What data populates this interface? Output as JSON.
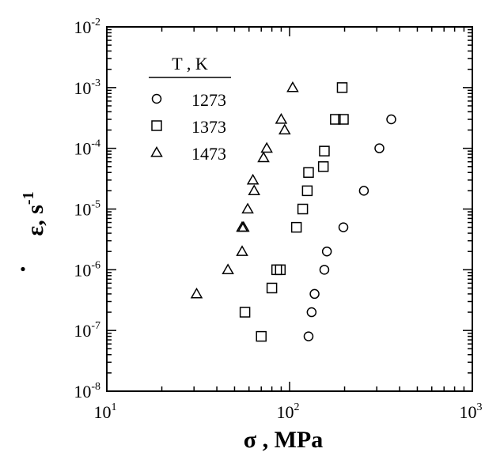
{
  "chart_data": {
    "type": "scatter",
    "x_scale": "log",
    "y_scale": "log",
    "xlim": [
      10,
      1000
    ],
    "ylim": [
      1e-08,
      0.01
    ],
    "x_ticks": [
      {
        "value": 10,
        "base": "10",
        "exp": "1"
      },
      {
        "value": 100,
        "base": "10",
        "exp": "2"
      },
      {
        "value": 1000,
        "base": "10",
        "exp": "3"
      }
    ],
    "y_ticks": [
      {
        "value": 1e-08,
        "base": "10",
        "exp": "-8"
      },
      {
        "value": 1e-07,
        "base": "10",
        "exp": "-7"
      },
      {
        "value": 1e-06,
        "base": "10",
        "exp": "-6"
      },
      {
        "value": 1e-05,
        "base": "10",
        "exp": "-5"
      },
      {
        "value": 0.0001,
        "base": "10",
        "exp": "-4"
      },
      {
        "value": 0.001,
        "base": "10",
        "exp": "-3"
      },
      {
        "value": 0.01,
        "base": "10",
        "exp": "-2"
      }
    ],
    "xlabel": "σ ,  MPa",
    "ylabel": {
      "symbol": "ε",
      "separator": ",",
      "unit": "s",
      "unit_exp": "-1"
    },
    "legend": {
      "title": "T , K",
      "placement": "top-left"
    },
    "series": [
      {
        "name": "1273",
        "marker": "circle",
        "points": [
          {
            "x": 127,
            "y": 8e-08
          },
          {
            "x": 132,
            "y": 2e-07
          },
          {
            "x": 137,
            "y": 4e-07
          },
          {
            "x": 155,
            "y": 1e-06
          },
          {
            "x": 160,
            "y": 2e-06
          },
          {
            "x": 197,
            "y": 5e-06
          },
          {
            "x": 255,
            "y": 2e-05
          },
          {
            "x": 310,
            "y": 0.0001
          },
          {
            "x": 360,
            "y": 0.0003
          }
        ]
      },
      {
        "name": "1373",
        "marker": "square",
        "points": [
          {
            "x": 70,
            "y": 8e-08
          },
          {
            "x": 57,
            "y": 2e-07
          },
          {
            "x": 80,
            "y": 5e-07
          },
          {
            "x": 85,
            "y": 1e-06
          },
          {
            "x": 89,
            "y": 1e-06
          },
          {
            "x": 109,
            "y": 5e-06
          },
          {
            "x": 118,
            "y": 1e-05
          },
          {
            "x": 125,
            "y": 2e-05
          },
          {
            "x": 127,
            "y": 4e-05
          },
          {
            "x": 153,
            "y": 5e-05
          },
          {
            "x": 155,
            "y": 9e-05
          },
          {
            "x": 178,
            "y": 0.0003
          },
          {
            "x": 197,
            "y": 0.0003
          },
          {
            "x": 194,
            "y": 0.001
          }
        ]
      },
      {
        "name": "1473",
        "marker": "triangle",
        "points": [
          {
            "x": 31,
            "y": 4e-07
          },
          {
            "x": 46,
            "y": 1e-06
          },
          {
            "x": 55,
            "y": 2e-06
          },
          {
            "x": 55,
            "y": 5e-06
          },
          {
            "x": 56,
            "y": 5e-06
          },
          {
            "x": 59,
            "y": 1e-05
          },
          {
            "x": 64,
            "y": 2e-05
          },
          {
            "x": 63,
            "y": 3e-05
          },
          {
            "x": 72,
            "y": 7e-05
          },
          {
            "x": 75,
            "y": 0.0001
          },
          {
            "x": 94,
            "y": 0.0002
          },
          {
            "x": 90,
            "y": 0.0003
          },
          {
            "x": 104,
            "y": 0.001
          }
        ]
      }
    ]
  }
}
